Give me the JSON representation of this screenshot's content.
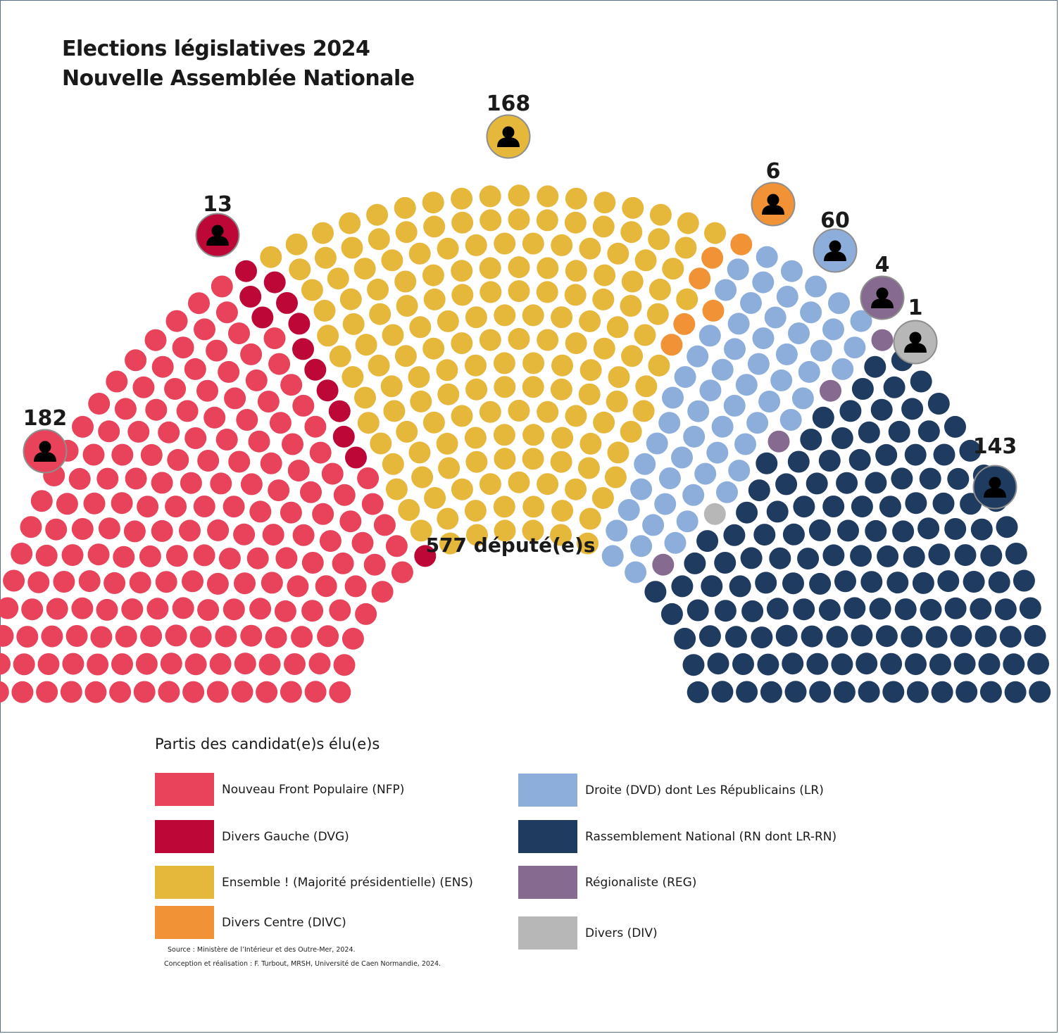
{
  "title_line1": "Elections législatives 2024",
  "title_line2": "Nouvelle Assemblée Nationale",
  "center_label": "577 député(e)s",
  "legend_title": "Partis des candidat(e)s élu(e)s",
  "source": "Source : Ministère de l’Intérieur et des Outre-Mer, 2024.",
  "credit": "Conception et réalisation : F. Turbout, MRSH, Université de Caen Normandie, 2024.",
  "icon": "person-icon",
  "chart_data": {
    "type": "parliament",
    "total": 577,
    "series": [
      {
        "name": "Nouveau Front Populaire (NFP)",
        "count": 182,
        "label": "182",
        "color": "#e8435b"
      },
      {
        "name": "Divers Gauche (DVG)",
        "count": 13,
        "label": "13",
        "color": "#bd0737"
      },
      {
        "name": "Ensemble ! (Majorité présidentielle) (ENS)",
        "count": 168,
        "label": "168",
        "color": "#e5b73b"
      },
      {
        "name": "Divers Centre (DIVC)",
        "count": 6,
        "label": "6",
        "color": "#f19236"
      },
      {
        "name": "Droite (DVD) dont Les Républicains (LR)",
        "count": 60,
        "label": "60",
        "color": "#8daedb"
      },
      {
        "name": "Régionaliste (REG)",
        "count": 4,
        "label": "4",
        "color": "#866a8f"
      },
      {
        "name": "Divers (DIV)",
        "count": 1,
        "label": "1",
        "color": "#b7b7b7"
      },
      {
        "name": "Rassemblement National (RN dont LR-RN)",
        "count": 143,
        "label": "143",
        "color": "#1f3b60"
      }
    ]
  }
}
